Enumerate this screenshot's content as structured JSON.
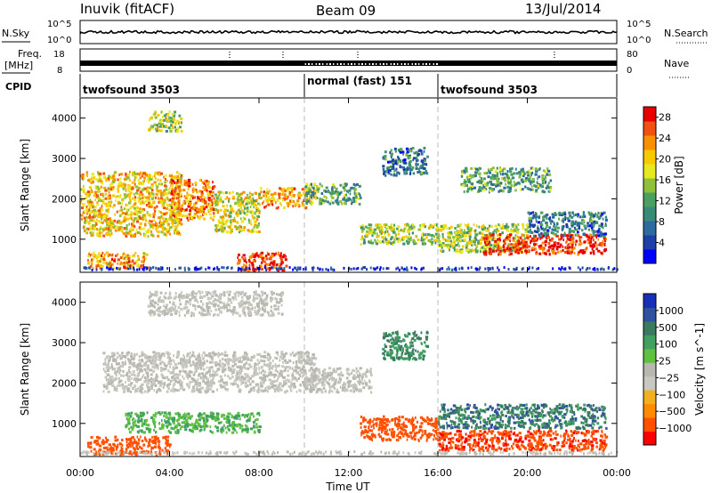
{
  "header": {
    "station": "Inuvik (fitACF)",
    "beam": "Beam 09",
    "date": "13/Jul/2014"
  },
  "top_panels": {
    "nsky_label": "N.Sky",
    "nsky_ticks": [
      "10^5",
      "10^0"
    ],
    "nsearch_label": "N.Search",
    "nsearch_ticks": [
      "10^5",
      "10^0"
    ],
    "freq_label": "Freq.",
    "freq_unit": "[MHz]",
    "freq_ticks": [
      "18",
      "8"
    ],
    "nave_label": "Nave",
    "nave_ticks": [
      "80",
      "0"
    ],
    "cpid_label": "CPID",
    "cpid_segments": [
      {
        "label": "twofsound 3503",
        "start_hour": 0,
        "end_hour": 10
      },
      {
        "label": "normal (fast) 151",
        "start_hour": 10,
        "end_hour": 16
      },
      {
        "label": "twofsound 3503",
        "start_hour": 16,
        "end_hour": 24
      }
    ]
  },
  "colors": {
    "power_scale": [
      "#0000ff",
      "#1e3fa8",
      "#2e6a9e",
      "#3a8a78",
      "#4aa060",
      "#8ec03a",
      "#e8e820",
      "#f8c800",
      "#f89000",
      "#f05010",
      "#e80000"
    ],
    "velocity_scale": [
      "#ff0000",
      "#ff5000",
      "#ff8c00",
      "#f0b020",
      "#c8c8c0",
      "#b8b8b0",
      "#60c040",
      "#40a060",
      "#3a7a60",
      "#3050a0",
      "#1830b8"
    ]
  },
  "chart_data": [
    {
      "type": "heatmap",
      "panel": "power",
      "xlabel": "",
      "ylabel": "Slant Range [km]",
      "xlim": [
        "00:00",
        "24:00"
      ],
      "ylim": [
        180,
        4500
      ],
      "yticks": [
        "1000",
        "2000",
        "3000",
        "4000"
      ],
      "colorbar_label": "Power [dB]",
      "colorbar_ticks": [
        "4",
        "8",
        "12",
        "16",
        "20",
        "24",
        "28"
      ],
      "colorbar_range": [
        0,
        30
      ],
      "regions": [
        {
          "t0": 0.0,
          "t1": 4.5,
          "r0": 1100,
          "r1": 2700,
          "value": 20
        },
        {
          "t0": 0.3,
          "t1": 3.0,
          "r0": 300,
          "r1": 700,
          "value": 22
        },
        {
          "t0": 4.0,
          "t1": 6.0,
          "r0": 1500,
          "r1": 2500,
          "value": 24
        },
        {
          "t0": 6.0,
          "t1": 8.0,
          "r0": 1200,
          "r1": 2200,
          "value": 18
        },
        {
          "t0": 7.0,
          "t1": 9.2,
          "r0": 250,
          "r1": 700,
          "value": 28
        },
        {
          "t0": 8.0,
          "t1": 10.5,
          "r0": 1800,
          "r1": 2300,
          "value": 22
        },
        {
          "t0": 3.0,
          "t1": 4.5,
          "r0": 3700,
          "r1": 4200,
          "value": 16
        },
        {
          "t0": 10.0,
          "t1": 12.5,
          "r0": 1900,
          "r1": 2400,
          "value": 12
        },
        {
          "t0": 12.5,
          "t1": 16.0,
          "r0": 900,
          "r1": 1400,
          "value": 16
        },
        {
          "t0": 13.5,
          "t1": 15.5,
          "r0": 2600,
          "r1": 3300,
          "value": 8
        },
        {
          "t0": 16.0,
          "t1": 20.0,
          "r0": 700,
          "r1": 1400,
          "value": 16
        },
        {
          "t0": 18.0,
          "t1": 23.5,
          "r0": 650,
          "r1": 1150,
          "value": 28
        },
        {
          "t0": 20.0,
          "t1": 23.5,
          "r0": 1100,
          "r1": 1700,
          "value": 8
        },
        {
          "t0": 17.0,
          "t1": 21.0,
          "r0": 2200,
          "r1": 2800,
          "value": 12
        }
      ]
    },
    {
      "type": "heatmap",
      "panel": "velocity",
      "xlabel": "Time UT",
      "ylabel": "Slant Range [km]",
      "xlim": [
        "00:00",
        "24:00"
      ],
      "ylim": [
        180,
        4500
      ],
      "xticks": [
        "00:00",
        "04:00",
        "08:00",
        "12:00",
        "16:00",
        "20:00",
        "00:00"
      ],
      "yticks": [
        "1000",
        "2000",
        "3000",
        "4000"
      ],
      "colorbar_label": "Velocity [m s^-1]",
      "colorbar_ticks": [
        "1000",
        "500",
        "100",
        "25",
        "−25",
        "−100",
        "−500",
        "−1000"
      ],
      "regions": [
        {
          "t0": 1.0,
          "t1": 10.5,
          "r0": 1800,
          "r1": 2800,
          "value": 0
        },
        {
          "t0": 0.3,
          "t1": 4.0,
          "r0": 250,
          "r1": 700,
          "value": -300
        },
        {
          "t0": 2.0,
          "t1": 8.0,
          "r0": 800,
          "r1": 1300,
          "value": 100
        },
        {
          "t0": 3.0,
          "t1": 9.0,
          "r0": 3700,
          "r1": 4300,
          "value": 0
        },
        {
          "t0": 10.0,
          "t1": 13.0,
          "r0": 1800,
          "r1": 2400,
          "value": 0
        },
        {
          "t0": 12.5,
          "t1": 16.0,
          "r0": 600,
          "r1": 1200,
          "value": -200
        },
        {
          "t0": 16.0,
          "t1": 23.5,
          "r0": 900,
          "r1": 1500,
          "value": 400
        },
        {
          "t0": 16.0,
          "t1": 23.5,
          "r0": 350,
          "r1": 850,
          "value": -400
        },
        {
          "t0": 13.5,
          "t1": 15.5,
          "r0": 2600,
          "r1": 3300,
          "value": 300
        }
      ]
    }
  ]
}
